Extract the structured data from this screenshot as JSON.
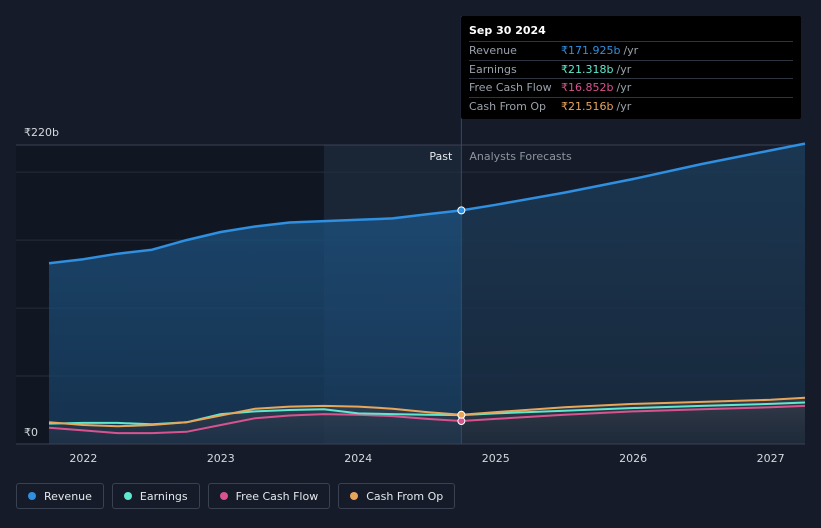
{
  "chart_data": {
    "type": "area",
    "y_axis": {
      "top_label": "₹220b",
      "bottom_label": "₹0",
      "ylim": [
        0,
        220
      ]
    },
    "x_ticks": [
      "2022",
      "2023",
      "2024",
      "2025",
      "2026",
      "2027"
    ],
    "x_range": [
      2021.75,
      2027.25
    ],
    "divider_x": 2024.75,
    "forecast_shade_start": 2023.75,
    "past_label": "Past",
    "forecast_label": "Analysts Forecasts",
    "series": [
      {
        "name": "Revenue",
        "color": "#2f8fe0",
        "points": [
          [
            2021.75,
            133
          ],
          [
            2022.0,
            136
          ],
          [
            2022.25,
            140
          ],
          [
            2022.5,
            143
          ],
          [
            2022.75,
            150
          ],
          [
            2023.0,
            156
          ],
          [
            2023.25,
            160
          ],
          [
            2023.5,
            163
          ],
          [
            2023.75,
            164
          ],
          [
            2024.0,
            165
          ],
          [
            2024.25,
            166
          ],
          [
            2024.5,
            169
          ],
          [
            2024.75,
            171.9
          ],
          [
            2025.0,
            176
          ],
          [
            2025.5,
            185
          ],
          [
            2026.0,
            195
          ],
          [
            2026.5,
            206
          ],
          [
            2027.0,
            216
          ],
          [
            2027.25,
            221
          ]
        ]
      },
      {
        "name": "Earnings",
        "color": "#5ee8cf",
        "points": [
          [
            2021.75,
            15
          ],
          [
            2022.0,
            15.5
          ],
          [
            2022.25,
            15.5
          ],
          [
            2022.5,
            14.5
          ],
          [
            2022.75,
            16
          ],
          [
            2023.0,
            22
          ],
          [
            2023.25,
            24
          ],
          [
            2023.5,
            25
          ],
          [
            2023.75,
            25.5
          ],
          [
            2024.0,
            22.5
          ],
          [
            2024.25,
            22
          ],
          [
            2024.5,
            21.5
          ],
          [
            2024.75,
            21.3
          ],
          [
            2025.0,
            22.5
          ],
          [
            2025.5,
            24.5
          ],
          [
            2026.0,
            26.5
          ],
          [
            2026.5,
            28
          ],
          [
            2027.0,
            29.5
          ],
          [
            2027.25,
            30.5
          ]
        ]
      },
      {
        "name": "Free Cash Flow",
        "color": "#d9538f",
        "points": [
          [
            2021.75,
            12
          ],
          [
            2022.0,
            10
          ],
          [
            2022.25,
            8
          ],
          [
            2022.5,
            8
          ],
          [
            2022.75,
            9
          ],
          [
            2023.0,
            14
          ],
          [
            2023.25,
            19
          ],
          [
            2023.5,
            21
          ],
          [
            2023.75,
            22
          ],
          [
            2024.0,
            21.5
          ],
          [
            2024.25,
            20.5
          ],
          [
            2024.5,
            18.5
          ],
          [
            2024.75,
            16.9
          ],
          [
            2025.0,
            18.5
          ],
          [
            2025.5,
            21.5
          ],
          [
            2026.0,
            24
          ],
          [
            2026.5,
            25.5
          ],
          [
            2027.0,
            27
          ],
          [
            2027.25,
            28
          ]
        ]
      },
      {
        "name": "Cash From Op",
        "color": "#e8a65a",
        "points": [
          [
            2021.75,
            16
          ],
          [
            2022.0,
            14
          ],
          [
            2022.25,
            13
          ],
          [
            2022.5,
            14
          ],
          [
            2022.75,
            16
          ],
          [
            2023.0,
            21
          ],
          [
            2023.25,
            26
          ],
          [
            2023.5,
            27.5
          ],
          [
            2023.75,
            28
          ],
          [
            2024.0,
            27.5
          ],
          [
            2024.25,
            26
          ],
          [
            2024.5,
            23.5
          ],
          [
            2024.75,
            21.5
          ],
          [
            2025.0,
            23.5
          ],
          [
            2025.5,
            27
          ],
          [
            2026.0,
            29.5
          ],
          [
            2026.5,
            31
          ],
          [
            2027.0,
            32.5
          ],
          [
            2027.25,
            34
          ]
        ]
      }
    ]
  },
  "tooltip": {
    "date": "Sep 30 2024",
    "unit": "/yr",
    "rows": [
      {
        "label": "Revenue",
        "value": "₹171.925b",
        "color": "#2f8fe0"
      },
      {
        "label": "Earnings",
        "value": "₹21.318b",
        "color": "#5ee8cf"
      },
      {
        "label": "Free Cash Flow",
        "value": "₹16.852b",
        "color": "#d9538f"
      },
      {
        "label": "Cash From Op",
        "value": "₹21.516b",
        "color": "#e8a65a"
      }
    ]
  },
  "legend": [
    {
      "label": "Revenue",
      "color": "#2f8fe0"
    },
    {
      "label": "Earnings",
      "color": "#5ee8cf"
    },
    {
      "label": "Free Cash Flow",
      "color": "#d9538f"
    },
    {
      "label": "Cash From Op",
      "color": "#e8a65a"
    }
  ]
}
